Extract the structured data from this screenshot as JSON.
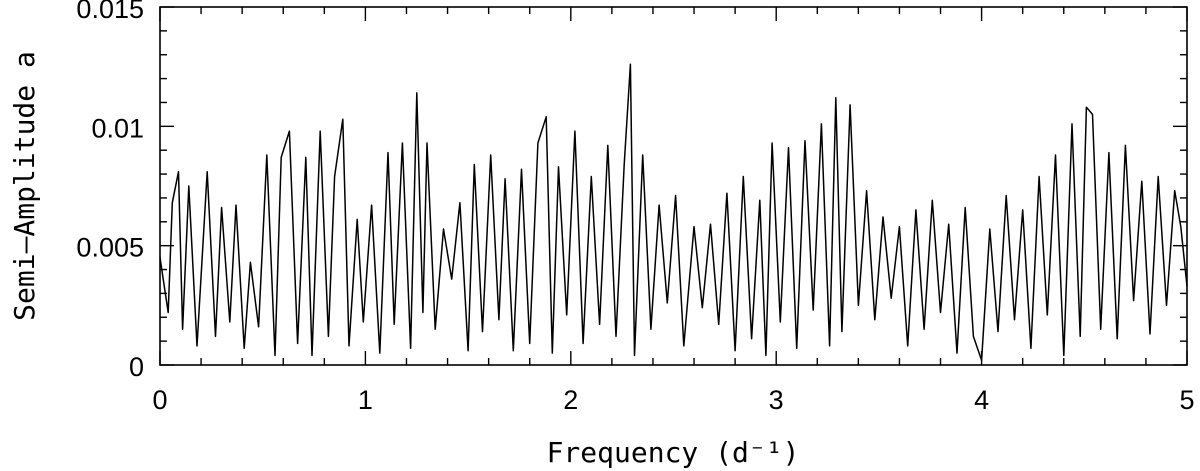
{
  "chart_data": {
    "type": "line",
    "title": "",
    "xlabel": "Frequency (d⁻¹)",
    "ylabel": "Semi–Amplitude a",
    "xlim": [
      0,
      5
    ],
    "ylim": [
      0,
      0.015
    ],
    "x_major_ticks": [
      0,
      1,
      2,
      3,
      4,
      5
    ],
    "x_tick_labels": [
      "0",
      "1",
      "2",
      "3",
      "4",
      "5"
    ],
    "x_minor_step": 0.2,
    "y_major_ticks": [
      0,
      0.005,
      0.01,
      0.015
    ],
    "y_tick_labels": [
      "0",
      "0.005",
      "0.01",
      "0.015"
    ],
    "y_minor_step": 0.001,
    "grid": false,
    "legend": false,
    "line_color": "#000000",
    "series": [
      {
        "x": [
          0.0,
          0.04,
          0.06,
          0.09,
          0.11,
          0.14,
          0.18,
          0.23,
          0.27,
          0.3,
          0.34,
          0.37,
          0.41,
          0.44,
          0.48,
          0.52,
          0.56,
          0.59,
          0.63,
          0.67,
          0.71,
          0.74,
          0.78,
          0.82,
          0.85,
          0.89,
          0.92,
          0.96,
          0.99,
          1.03,
          1.07,
          1.11,
          1.14,
          1.18,
          1.22,
          1.25,
          1.28,
          1.3,
          1.34,
          1.38,
          1.42,
          1.46,
          1.5,
          1.53,
          1.57,
          1.61,
          1.65,
          1.68,
          1.72,
          1.76,
          1.8,
          1.84,
          1.88,
          1.91,
          1.94,
          1.98,
          2.02,
          2.06,
          2.1,
          2.14,
          2.18,
          2.22,
          2.26,
          2.29,
          2.31,
          2.35,
          2.39,
          2.43,
          2.47,
          2.51,
          2.55,
          2.6,
          2.64,
          2.68,
          2.72,
          2.76,
          2.8,
          2.84,
          2.88,
          2.92,
          2.95,
          2.98,
          3.02,
          3.06,
          3.1,
          3.14,
          3.18,
          3.22,
          3.26,
          3.29,
          3.32,
          3.36,
          3.4,
          3.44,
          3.48,
          3.52,
          3.56,
          3.6,
          3.64,
          3.68,
          3.72,
          3.76,
          3.8,
          3.84,
          3.88,
          3.92,
          3.96,
          4.0,
          4.04,
          4.08,
          4.12,
          4.16,
          4.2,
          4.24,
          4.28,
          4.32,
          4.36,
          4.4,
          4.44,
          4.48,
          4.51,
          4.54,
          4.58,
          4.62,
          4.66,
          4.7,
          4.74,
          4.78,
          4.82,
          4.86,
          4.9,
          4.94,
          4.97,
          5.0
        ],
        "y": [
          0.0045,
          0.0022,
          0.0068,
          0.0081,
          0.0015,
          0.0075,
          0.0008,
          0.0081,
          0.0012,
          0.0066,
          0.0018,
          0.0067,
          0.0007,
          0.0043,
          0.0016,
          0.0088,
          0.0004,
          0.0087,
          0.0098,
          0.0009,
          0.0087,
          0.0004,
          0.0098,
          0.0012,
          0.0079,
          0.0103,
          0.0008,
          0.0061,
          0.0018,
          0.0067,
          0.0005,
          0.0089,
          0.0017,
          0.0093,
          0.0007,
          0.0114,
          0.0022,
          0.0093,
          0.0015,
          0.0057,
          0.0036,
          0.0068,
          0.0006,
          0.0084,
          0.0014,
          0.0088,
          0.0019,
          0.0078,
          0.0006,
          0.0082,
          0.0009,
          0.0093,
          0.0104,
          0.0005,
          0.0083,
          0.0021,
          0.0098,
          0.0009,
          0.0079,
          0.0017,
          0.0092,
          0.0012,
          0.0084,
          0.0126,
          0.0004,
          0.0088,
          0.0015,
          0.0067,
          0.0026,
          0.0071,
          0.0008,
          0.0058,
          0.0024,
          0.0059,
          0.0017,
          0.0072,
          0.0006,
          0.0079,
          0.0011,
          0.0069,
          0.0004,
          0.0093,
          0.0018,
          0.0091,
          0.0007,
          0.0094,
          0.0023,
          0.0101,
          0.0008,
          0.0112,
          0.0014,
          0.0109,
          0.0025,
          0.0073,
          0.0019,
          0.0062,
          0.0028,
          0.0058,
          0.0008,
          0.0065,
          0.0015,
          0.0069,
          0.0022,
          0.0059,
          0.0005,
          0.0066,
          0.0012,
          0.0002,
          0.0057,
          0.0014,
          0.0071,
          0.0019,
          0.0065,
          0.0007,
          0.0079,
          0.0021,
          0.0088,
          0.0004,
          0.0101,
          0.0012,
          0.0108,
          0.0105,
          0.0015,
          0.0089,
          0.0011,
          0.0092,
          0.0027,
          0.0077,
          0.0013,
          0.0079,
          0.0025,
          0.0073,
          0.0058,
          0.0033
        ]
      }
    ]
  }
}
